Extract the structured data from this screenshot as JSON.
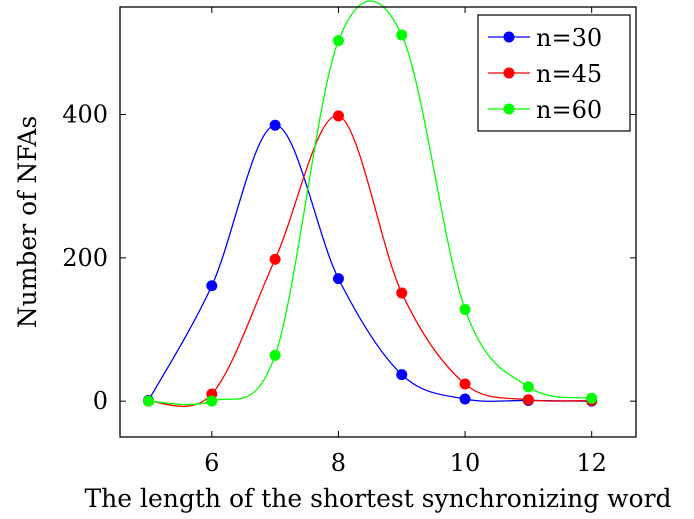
{
  "chart_data": {
    "type": "line",
    "title": "",
    "xlabel": "The length of the shortest synchronizing word",
    "ylabel": "Number of NFAs",
    "xlim": [
      4.55,
      12.7
    ],
    "ylim": [
      -50,
      550
    ],
    "xticks": [
      6,
      8,
      10,
      12
    ],
    "yticks": [
      0,
      200,
      400
    ],
    "xtick_labels": [
      "6",
      "8",
      "10",
      "12"
    ],
    "ytick_labels": [
      "0",
      "200",
      "400"
    ],
    "grid": false,
    "legend_position": "top-right",
    "smooth": true,
    "series": [
      {
        "name": "n=30",
        "color": "#0000ff",
        "x": [
          5,
          6,
          7,
          8,
          9,
          10,
          11,
          12
        ],
        "y": [
          1,
          161,
          385,
          171,
          37,
          3,
          1,
          0
        ]
      },
      {
        "name": "n=45",
        "color": "#ff0000",
        "x": [
          5,
          6,
          7,
          8,
          9,
          10,
          11,
          12
        ],
        "y": [
          0,
          10,
          198,
          398,
          151,
          24,
          2,
          1
        ]
      },
      {
        "name": "n=60",
        "color": "#00ff00",
        "x": [
          5,
          6,
          7,
          8,
          9,
          10,
          11,
          12
        ],
        "y": [
          0,
          0,
          64,
          503,
          511,
          128,
          20,
          4
        ]
      }
    ]
  }
}
